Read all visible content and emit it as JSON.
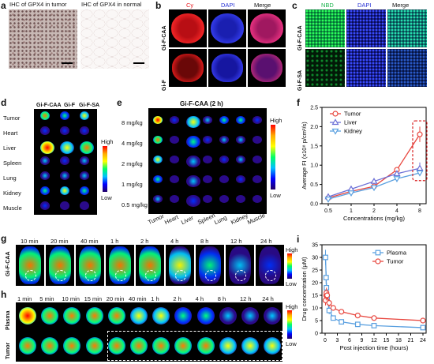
{
  "panels": {
    "a": {
      "letter": "a",
      "titles": [
        "IHC of GPX4 in tumor",
        "IHC of GPX4 in normal"
      ]
    },
    "b": {
      "letter": "b",
      "columns": [
        "Cy",
        "DAPI",
        "Merge"
      ],
      "rows": [
        "Gi-F-CAA",
        "Gi-F"
      ],
      "column_colors": [
        "#e8191f",
        "#2b35d6",
        "#111111"
      ]
    },
    "c": {
      "letter": "c",
      "columns": [
        "NBD",
        "DAPI",
        "Merge"
      ],
      "rows": [
        "Gi-F-CAA",
        "Gi-F-SA"
      ],
      "column_colors": [
        "#18b34a",
        "#2b35d6",
        "#111111"
      ]
    },
    "d": {
      "letter": "d",
      "columns": [
        "Gi-F-CAA",
        "Gi-F",
        "Gi-F-SA"
      ],
      "rows": [
        "Tumor",
        "Heart",
        "Liver",
        "Spleen",
        "Lung",
        "Kidney",
        "Muscle"
      ],
      "scale_high": "High",
      "scale_low": "Low"
    },
    "e": {
      "letter": "e",
      "title": "Gi-F-CAA (2 h)",
      "rows": [
        "8 mg/kg",
        "4 mg/kg",
        "2 mg/kg",
        "1 mg/kg",
        "0.5 mg/kg"
      ],
      "columns": [
        "Tumor",
        "Heart",
        "Liver",
        "Spleen",
        "Lung",
        "Kidney",
        "Muscle"
      ],
      "scale_high": "High",
      "scale_low": "Low"
    },
    "f": {
      "letter": "f"
    },
    "g": {
      "letter": "g",
      "row_label": "Gi-F-CAA",
      "times": [
        "10 min",
        "20 min",
        "40 min",
        "1 h",
        "2 h",
        "4 h",
        "8 h",
        "12 h",
        "24 h"
      ],
      "scale_high": "High",
      "scale_low": "Low"
    },
    "h": {
      "letter": "h",
      "row_labels": [
        "Plasma",
        "Tumor"
      ],
      "times": [
        "1 min",
        "5 min",
        "10 min",
        "15 min",
        "20 min",
        "40 min",
        "1 h",
        "2 h",
        "4 h",
        "8 h",
        "12 h",
        "24 h"
      ],
      "scale_high": "High",
      "scale_low": "Low"
    },
    "i": {
      "letter": "i"
    }
  },
  "chart_data": [
    {
      "panel": "f",
      "type": "line",
      "x": [
        0.5,
        1,
        2,
        4,
        8
      ],
      "x_ticks": [
        "0.5",
        "1",
        "2",
        "4",
        "8"
      ],
      "xlabel": "Concentrations (mg/kg)",
      "ylabel": "Average FI (x10⁸ p/cm²/s)",
      "ylim": [
        0,
        2.5
      ],
      "y_ticks": [
        "0.0",
        "0.5",
        "1.0",
        "1.5",
        "2.0",
        "2.5"
      ],
      "series": [
        {
          "name": "Tumor",
          "color": "#e8473f",
          "marker": "circle",
          "values": [
            0.15,
            0.32,
            0.45,
            0.88,
            1.8
          ],
          "err": [
            0.05,
            0.05,
            0.06,
            0.07,
            0.2
          ]
        },
        {
          "name": "Liver",
          "color": "#6b6fd6",
          "marker": "triangle-up",
          "values": [
            0.18,
            0.38,
            0.58,
            0.78,
            0.92
          ],
          "err": [
            0.04,
            0.05,
            0.07,
            0.06,
            0.15
          ]
        },
        {
          "name": "Kidney",
          "color": "#5aa0e0",
          "marker": "triangle-down",
          "values": [
            0.12,
            0.28,
            0.42,
            0.65,
            0.8
          ],
          "err": [
            0.04,
            0.04,
            0.05,
            0.06,
            0.08
          ]
        }
      ],
      "legend": "top-left"
    },
    {
      "panel": "i",
      "type": "line",
      "x": [
        0.1,
        0.25,
        0.33,
        0.5,
        1,
        2,
        4,
        8,
        12,
        24
      ],
      "x_ticks": [
        "0",
        "3",
        "6",
        "9",
        "12",
        "15",
        "18",
        "21",
        "24"
      ],
      "xlabel": "Post injection time (hours)",
      "ylabel": "Drug concentration (μM)",
      "ylim": [
        0,
        35
      ],
      "y_ticks": [
        "0",
        "5",
        "10",
        "15",
        "20",
        "25",
        "30",
        "35"
      ],
      "series": [
        {
          "name": "Plasma",
          "color": "#5aa0e0",
          "marker": "square",
          "values": [
            30,
            22,
            18,
            14,
            9,
            6,
            4.5,
            3.5,
            3,
            2.2
          ],
          "err": [
            3,
            2.5,
            2,
            2,
            1.5,
            1,
            0.8,
            0.6,
            0.5,
            0.4
          ]
        },
        {
          "name": "Tumor",
          "color": "#e8473f",
          "marker": "circle",
          "values": [
            13,
            15,
            16,
            15,
            12,
            10,
            8.5,
            7,
            6,
            5
          ],
          "err": [
            2,
            2,
            2,
            1.5,
            1.5,
            1,
            0.8,
            0.8,
            0.6,
            0.5
          ]
        }
      ],
      "legend": "top-right"
    }
  ]
}
